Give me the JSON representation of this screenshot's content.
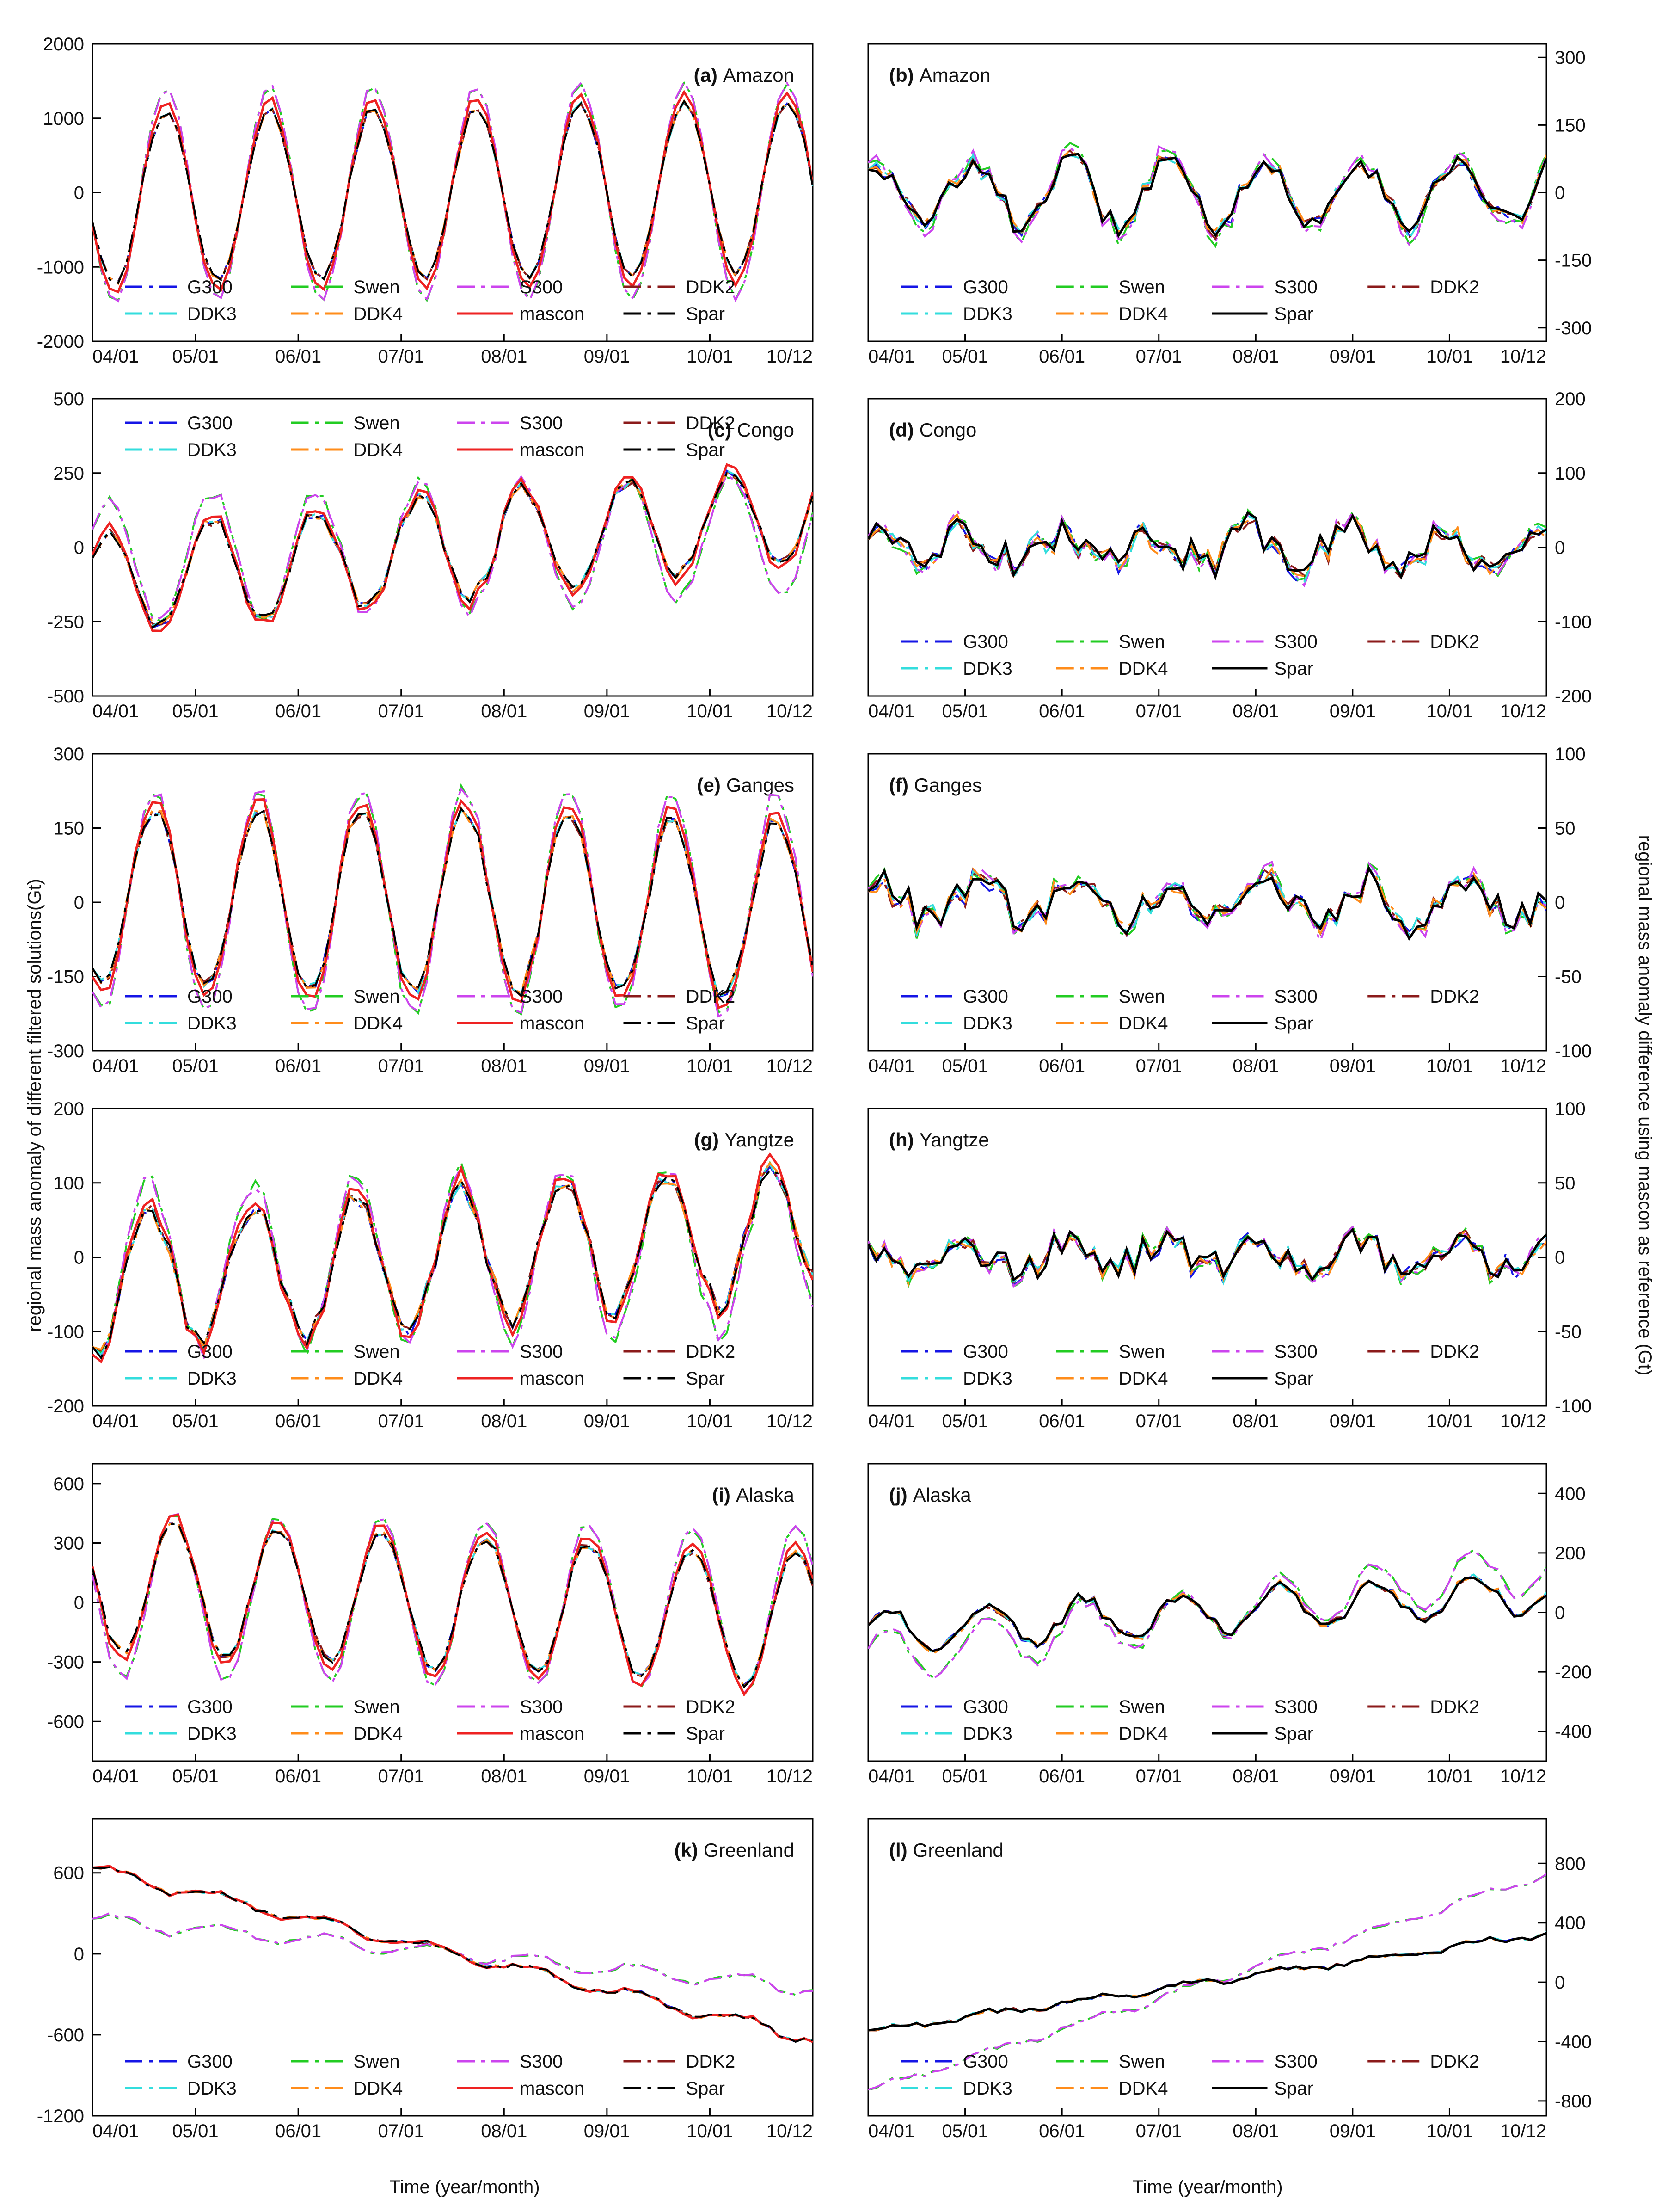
{
  "figure": {
    "ylabel_left": "regional mass anomaly  of different filtered solutions(Gt)",
    "ylabel_right": "regional mass anomaly difference using mascon as reference (Gt)",
    "xlabel": "Time (year/month)"
  },
  "chart_data": [
    {
      "id": "a",
      "type": "line",
      "title_letter": "(a)",
      "title_name": "Amazon",
      "ylim": [
        -2000,
        2000
      ],
      "yticks": [
        2000,
        1000,
        0,
        -1000,
        -2000
      ],
      "y_axis_side": "left",
      "x_ticks": [
        "04/01",
        "05/01",
        "06/01",
        "07/01",
        "08/01",
        "09/01",
        "10/01",
        "10/12"
      ],
      "series_names": [
        "G300",
        "Swen",
        "S300",
        "DDK2",
        "DDK3",
        "DDK4",
        "mascon",
        "Spar"
      ],
      "x_start": 2004.0,
      "x_end": 2010.95,
      "seasonal_amplitude": 1150,
      "trend": 20,
      "phase": 3.4,
      "noise": 60
    },
    {
      "id": "b",
      "type": "line",
      "title_letter": "(b)",
      "title_name": "Amazon",
      "ylim": [
        -330,
        330
      ],
      "yticks": [
        300,
        150,
        0,
        -150,
        -300
      ],
      "y_axis_side": "right",
      "x_ticks": [
        "04/01",
        "05/01",
        "06/01",
        "07/01",
        "08/01",
        "09/01",
        "10/01",
        "10/12"
      ],
      "series_names": [
        "G300",
        "Swen",
        "S300",
        "DDK2",
        "DDK3",
        "DDK4",
        "Spar"
      ],
      "x_start": 2004.0,
      "x_end": 2010.95,
      "seasonal_amplitude": 70,
      "trend": 0,
      "phase": 1.2,
      "noise": 35
    },
    {
      "id": "c",
      "type": "line",
      "title_letter": "(c)",
      "title_name": "Congo",
      "ylim": [
        -500,
        500
      ],
      "yticks": [
        500,
        250,
        0,
        -250,
        -500
      ],
      "y_axis_side": "left",
      "x_ticks": [
        "04/01",
        "05/01",
        "06/01",
        "07/01",
        "08/01",
        "09/01",
        "10/01",
        "10/12"
      ],
      "series_names": [
        "G300",
        "Swen",
        "S300",
        "DDK2",
        "DDK3",
        "DDK4",
        "mascon",
        "Spar"
      ],
      "x_start": 2004.0,
      "x_end": 2010.95,
      "seasonal_amplitude": 170,
      "trend": 35,
      "phase": 0.6,
      "noise": 30
    },
    {
      "id": "d",
      "type": "line",
      "title_letter": "(d)",
      "title_name": "Congo",
      "ylim": [
        -200,
        200
      ],
      "yticks": [
        200,
        100,
        0,
        -100,
        -200
      ],
      "y_axis_side": "right",
      "x_ticks": [
        "04/01",
        "05/01",
        "06/01",
        "07/01",
        "08/01",
        "09/01",
        "10/01",
        "10/12"
      ],
      "series_names": [
        "G300",
        "Swen",
        "S300",
        "DDK2",
        "DDK3",
        "DDK4",
        "Spar"
      ],
      "x_start": 2004.0,
      "x_end": 2010.95,
      "seasonal_amplitude": 20,
      "trend": 0,
      "phase": 2.0,
      "noise": 30
    },
    {
      "id": "e",
      "type": "line",
      "title_letter": "(e)",
      "title_name": "Ganges",
      "ylim": [
        -300,
        300
      ],
      "yticks": [
        300,
        150,
        0,
        -150,
        -300
      ],
      "y_axis_side": "left",
      "x_ticks": [
        "04/01",
        "05/01",
        "06/01",
        "07/01",
        "08/01",
        "09/01",
        "10/01",
        "10/12"
      ],
      "series_names": [
        "G300",
        "Swen",
        "S300",
        "DDK2",
        "DDK3",
        "DDK4",
        "mascon",
        "Spar"
      ],
      "x_start": 2004.0,
      "x_end": 2010.95,
      "seasonal_amplitude": 180,
      "trend": -5,
      "phase": 4.1,
      "noise": 20
    },
    {
      "id": "f",
      "type": "line",
      "title_letter": "(f)",
      "title_name": "Ganges",
      "ylim": [
        -100,
        100
      ],
      "yticks": [
        100,
        50,
        0,
        -50,
        -100
      ],
      "y_axis_side": "right",
      "x_ticks": [
        "04/01",
        "05/01",
        "06/01",
        "07/01",
        "08/01",
        "09/01",
        "10/01",
        "10/12"
      ],
      "series_names": [
        "G300",
        "Swen",
        "S300",
        "DDK2",
        "DDK3",
        "DDK4",
        "Spar"
      ],
      "x_start": 2004.0,
      "x_end": 2010.95,
      "seasonal_amplitude": 12,
      "trend": 0,
      "phase": 0.8,
      "noise": 14
    },
    {
      "id": "g",
      "type": "line",
      "title_letter": "(g)",
      "title_name": "Yangtze",
      "ylim": [
        -200,
        200
      ],
      "yticks": [
        200,
        100,
        0,
        -100,
        -200
      ],
      "y_axis_side": "left",
      "x_ticks": [
        "04/01",
        "05/01",
        "06/01",
        "07/01",
        "08/01",
        "09/01",
        "10/01",
        "10/12"
      ],
      "series_names": [
        "G300",
        "Swen",
        "S300",
        "DDK2",
        "DDK3",
        "DDK4",
        "mascon",
        "Spar"
      ],
      "x_start": 2004.0,
      "x_end": 2010.95,
      "seasonal_amplitude": 90,
      "trend": 10,
      "phase": 4.4,
      "noise": 20
    },
    {
      "id": "h",
      "type": "line",
      "title_letter": "(h)",
      "title_name": "Yangtze",
      "ylim": [
        -100,
        100
      ],
      "yticks": [
        100,
        50,
        0,
        -50,
        -100
      ],
      "y_axis_side": "right",
      "x_ticks": [
        "04/01",
        "05/01",
        "06/01",
        "07/01",
        "08/01",
        "09/01",
        "10/01",
        "10/12"
      ],
      "series_names": [
        "G300",
        "Swen",
        "S300",
        "DDK2",
        "DDK3",
        "DDK4",
        "Spar"
      ],
      "x_start": 2004.0,
      "x_end": 2010.95,
      "seasonal_amplitude": 8,
      "trend": 0,
      "phase": 1.5,
      "noise": 13
    },
    {
      "id": "i",
      "type": "line",
      "title_letter": "(i)",
      "title_name": "Alaska",
      "ylim": [
        -800,
        700
      ],
      "yticks": [
        600,
        300,
        0,
        -300,
        -600
      ],
      "y_axis_side": "left",
      "x_ticks": [
        "04/01",
        "05/01",
        "06/01",
        "07/01",
        "08/01",
        "09/01",
        "10/01",
        "10/12"
      ],
      "series_names": [
        "G300",
        "Swen",
        "S300",
        "DDK2",
        "DDK3",
        "DDK4",
        "mascon",
        "Spar"
      ],
      "x_start": 2004.0,
      "x_end": 2010.95,
      "seasonal_amplitude": 330,
      "trend": -25,
      "phase": 2.9,
      "noise": 30
    },
    {
      "id": "j",
      "type": "line",
      "title_letter": "(j)",
      "title_name": "Alaska",
      "ylim": [
        -500,
        500
      ],
      "yticks": [
        400,
        200,
        0,
        -200,
        -400
      ],
      "y_axis_side": "right",
      "x_ticks": [
        "04/01",
        "05/01",
        "06/01",
        "07/01",
        "08/01",
        "09/01",
        "10/01",
        "10/12"
      ],
      "series_names": [
        "G300",
        "Swen",
        "S300",
        "DDK2",
        "DDK3",
        "DDK4",
        "Spar"
      ],
      "x_start": 2004.0,
      "x_end": 2010.95,
      "seasonal_amplitude": 70,
      "trend": 20,
      "phase": 0.3,
      "noise": 25
    },
    {
      "id": "k",
      "type": "line",
      "title_letter": "(k)",
      "title_name": "Greenland",
      "ylim": [
        -1200,
        1000
      ],
      "yticks": [
        600,
        0,
        -600,
        -1200
      ],
      "y_axis_side": "left",
      "x_ticks": [
        "04/01",
        "05/01",
        "06/01",
        "07/01",
        "08/01",
        "09/01",
        "10/01",
        "10/12"
      ],
      "series_names": [
        "G300",
        "Swen",
        "S300",
        "DDK2",
        "DDK3",
        "DDK4",
        "mascon",
        "Spar"
      ],
      "x_start": 2004.0,
      "x_end": 2010.95,
      "seasonal_amplitude": 40,
      "trend": -180,
      "phase": 0.0,
      "noise": 25
    },
    {
      "id": "l",
      "type": "line",
      "title_letter": "(l)",
      "title_name": "Greenland",
      "ylim": [
        -900,
        1100
      ],
      "yticks": [
        800,
        400,
        0,
        -400,
        -800
      ],
      "y_axis_side": "right",
      "x_ticks": [
        "04/01",
        "05/01",
        "06/01",
        "07/01",
        "08/01",
        "09/01",
        "10/01",
        "10/12"
      ],
      "series_names": [
        "G300",
        "Swen",
        "S300",
        "DDK2",
        "DDK3",
        "DDK4",
        "Spar"
      ],
      "x_start": 2004.0,
      "x_end": 2010.95,
      "seasonal_amplitude": 20,
      "trend": 95,
      "phase": 0.0,
      "noise": 20
    }
  ],
  "series_styles": {
    "G300": {
      "color": "#1515e6",
      "dash": "dashdot"
    },
    "Swen": {
      "color": "#22cc22",
      "dash": "dashdot"
    },
    "S300": {
      "color": "#cc44ee",
      "dash": "dashdot"
    },
    "DDK2": {
      "color": "#8b1a1a",
      "dash": "dashdot"
    },
    "DDK3": {
      "color": "#33dddd",
      "dash": "dashdot"
    },
    "DDK4": {
      "color": "#ff8c1a",
      "dash": "dashdot"
    },
    "mascon": {
      "color": "#ee2222",
      "dash": "solid"
    },
    "Spar": {
      "color": "#000000",
      "dash": "dashdot",
      "diff_dash": "solid"
    }
  }
}
